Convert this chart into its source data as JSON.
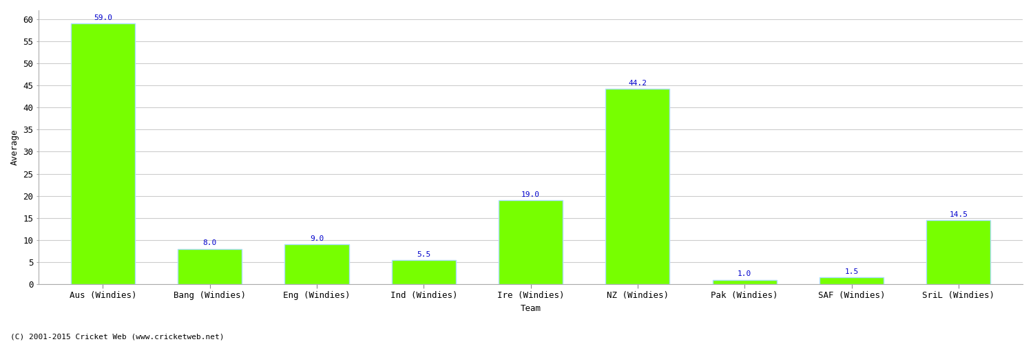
{
  "categories": [
    "Aus (Windies)",
    "Bang (Windies)",
    "Eng (Windies)",
    "Ind (Windies)",
    "Ire (Windies)",
    "NZ (Windies)",
    "Pak (Windies)",
    "SAF (Windies)",
    "SriL (Windies)"
  ],
  "values": [
    59.0,
    8.0,
    9.0,
    5.5,
    19.0,
    44.2,
    1.0,
    1.5,
    14.5
  ],
  "bar_color": "#77ff00",
  "bar_edge_color": "#aaddff",
  "value_color": "#0000cc",
  "ylabel": "Average",
  "xlabel": "Team",
  "ylim": [
    0,
    62
  ],
  "yticks": [
    0,
    5,
    10,
    15,
    20,
    25,
    30,
    35,
    40,
    45,
    50,
    55,
    60
  ],
  "grid_color": "#cccccc",
  "background_color": "#ffffff",
  "footer": "(C) 2001-2015 Cricket Web (www.cricketweb.net)",
  "label_fontsize": 9,
  "tick_fontsize": 9,
  "value_fontsize": 8,
  "footer_fontsize": 8
}
